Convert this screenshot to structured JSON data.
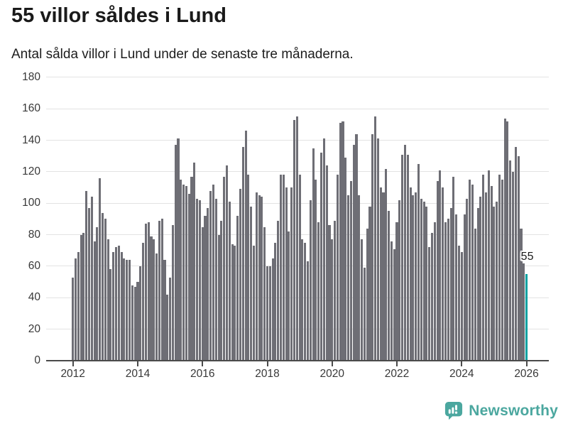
{
  "header": {
    "title": "55 villor såldes i Lund",
    "subtitle": "Antal sålda villor i Lund under de senaste tre månaderna."
  },
  "footer": {
    "brand": "Newsworthy"
  },
  "chart_data": {
    "type": "bar",
    "title": "55 villor såldes i Lund",
    "subtitle": "Antal sålda villor i Lund under de senaste tre månaderna.",
    "x_unit": "month",
    "x_start": "2012-01",
    "x_end": "2026-01",
    "x_tick_labels": [
      "2012",
      "2014",
      "2016",
      "2018",
      "2020",
      "2022",
      "2024",
      "2026"
    ],
    "y_ticks": [
      0,
      20,
      40,
      60,
      80,
      100,
      120,
      140,
      160,
      180
    ],
    "ylim": [
      0,
      180
    ],
    "grid": "horizontal-only",
    "legend": "none",
    "values": [
      53,
      65,
      69,
      80,
      81,
      108,
      97,
      104,
      76,
      85,
      116,
      94,
      90,
      77,
      58,
      69,
      72,
      73,
      69,
      65,
      64,
      64,
      48,
      47,
      50,
      60,
      75,
      87,
      88,
      79,
      77,
      68,
      89,
      90,
      64,
      42,
      53,
      86,
      137,
      141,
      115,
      112,
      111,
      106,
      117,
      126,
      103,
      102,
      85,
      92,
      97,
      108,
      112,
      103,
      80,
      89,
      117,
      124,
      101,
      74,
      73,
      92,
      109,
      136,
      146,
      118,
      98,
      73,
      107,
      105,
      104,
      85,
      60,
      60,
      65,
      75,
      89,
      118,
      118,
      110,
      82,
      110,
      153,
      155,
      118,
      77,
      75,
      63,
      102,
      135,
      115,
      88,
      132,
      141,
      124,
      86,
      77,
      89,
      118,
      151,
      152,
      129,
      105,
      114,
      137,
      144,
      105,
      77,
      59,
      84,
      98,
      144,
      155,
      141,
      110,
      107,
      122,
      95,
      76,
      71,
      88,
      102,
      131,
      137,
      131,
      110,
      105,
      107,
      125,
      103,
      101,
      98,
      72,
      81,
      88,
      114,
      121,
      110,
      88,
      90,
      97,
      117,
      93,
      73,
      69,
      93,
      103,
      115,
      112,
      84,
      97,
      104,
      118,
      107,
      121,
      111,
      98,
      101,
      118,
      115,
      154,
      152,
      127,
      120,
      136,
      130,
      84,
      62,
      55
    ],
    "highlight_last": true,
    "last_value_label": "55",
    "colors": {
      "bar": "#6e6e75",
      "highlight": "#00a1a1",
      "grid": "#e3e3e3",
      "axis": "#4a4a4a",
      "tick_text": "#383838",
      "brand_teal": "#4ba79f"
    }
  }
}
